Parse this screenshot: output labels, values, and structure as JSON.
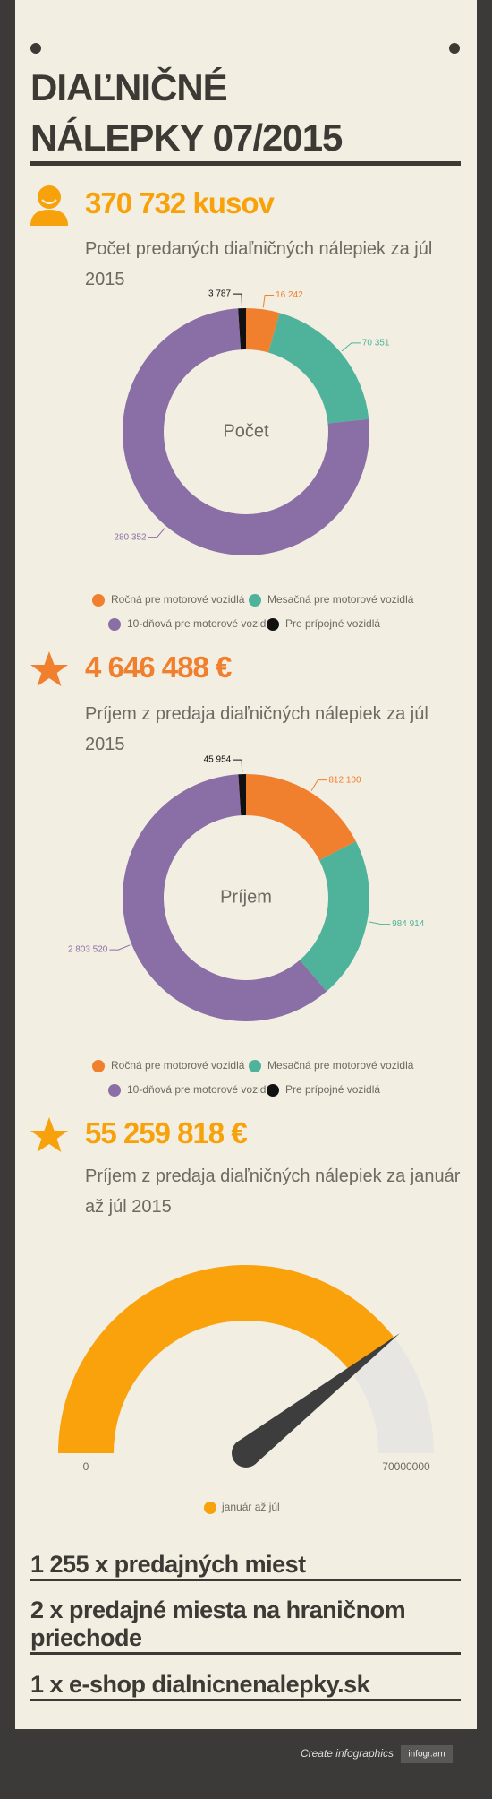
{
  "header": {
    "title": "DIAĽNIČNÉ NÁLEPKY 07/2015"
  },
  "stats": [
    {
      "value": "370 732 kusov",
      "caption": "Počet predaných diaľničných nálepiek za júl 2015"
    },
    {
      "value": "4 646 488 €",
      "caption": "Príjem z predaja diaľničných nálepiek za júl 2015"
    },
    {
      "value": "55 259 818 €",
      "caption": "Príjem z predaja diaľničných nálepiek za január až júl 2015"
    }
  ],
  "chart_data": [
    {
      "type": "donut",
      "center_label": "Počet",
      "categories": [
        "Ročná pre motorové vozidlá",
        "Mesačná pre motorové vozidlá",
        "10-dňová pre motorové vozidlá",
        "Pre prípojné vozidlá"
      ],
      "values": [
        16242,
        70351,
        280352,
        3787
      ],
      "value_labels": [
        "16 242",
        "70 351",
        "280 352",
        "3 787"
      ],
      "colors": [
        "#f07f2e",
        "#4fb39b",
        "#8a6ea6",
        "#111111"
      ]
    },
    {
      "type": "donut",
      "center_label": "Príjem",
      "categories": [
        "Ročná pre motorové vozidlá",
        "Mesačná pre motorové vozidlá",
        "10-dňová pre motorové vozidlá",
        "Pre prípojné vozidlá"
      ],
      "values": [
        812100,
        984914,
        2803520,
        45954
      ],
      "value_labels": [
        "812 100",
        "984 914",
        "2 803 520",
        "45 954"
      ],
      "colors": [
        "#f07f2e",
        "#4fb39b",
        "#8a6ea6",
        "#111111"
      ]
    },
    {
      "type": "gauge",
      "series": [
        {
          "name": "január až júl",
          "color": "#f9a20c",
          "values": [
            55259818
          ]
        }
      ],
      "ylim": [
        0,
        70000000
      ],
      "yticks": [
        0,
        70000000
      ]
    }
  ],
  "facts": [
    "1 255 x predajných miest",
    "2 x predajné miesta na hraničnom priechode",
    "1 x e-shop dialnicnenalepky.sk"
  ],
  "footer": {
    "text": "Create infographics",
    "brand": "infogr.am"
  }
}
